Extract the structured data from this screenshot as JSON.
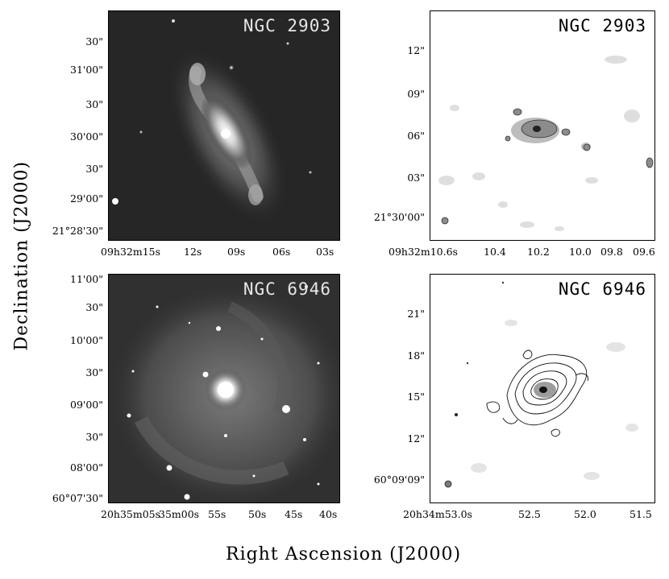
{
  "figure": {
    "y_axis_title": "Declination (J2000)",
    "x_axis_title": "Right Ascension (J2000)"
  },
  "panels": {
    "p1": {
      "title": "NGC 2903",
      "y_ticks": [
        "30\"",
        "31'00\"",
        "30\"",
        "30'00\"",
        "30\"",
        "29'00\"",
        "21°28'30\""
      ],
      "x_ticks": [
        "09h32m15s",
        "12s",
        "09s",
        "06s",
        "03s"
      ]
    },
    "p2": {
      "title": "NGC 2903",
      "y_ticks": [
        "12\"",
        "09\"",
        "06\"",
        "03\"",
        "21°30'00\""
      ],
      "x_ticks": [
        "09h32m10.6s",
        "10.4",
        "10.2",
        "10.0",
        "09.8",
        "09.6"
      ]
    },
    "p3": {
      "title": "NGC 6946",
      "y_ticks": [
        "11'00\"",
        "30\"",
        "10'00\"",
        "30\"",
        "09'00\"",
        "30\"",
        "08'00\"",
        "60°07'30\""
      ],
      "x_ticks": [
        "20h35m05s",
        "35m00s",
        "55s",
        "50s",
        "45s",
        "40s"
      ]
    },
    "p4": {
      "title": "NGC 6946",
      "y_ticks": [
        "21\"",
        "18\"",
        "15\"",
        "12\"",
        "60°09'09\""
      ],
      "x_ticks": [
        "20h34m53.0s",
        "52.5",
        "52.0",
        "51.5"
      ]
    }
  }
}
